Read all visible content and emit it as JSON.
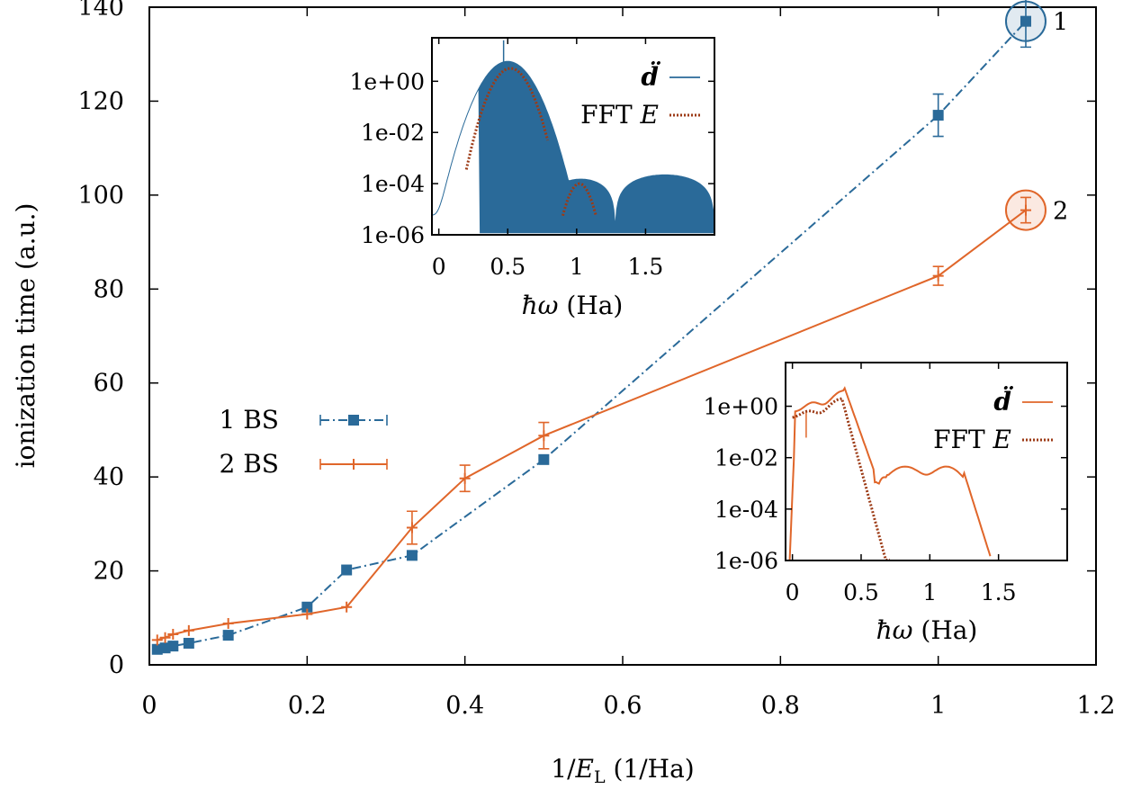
{
  "chart_data": [
    {
      "id": "main",
      "type": "line",
      "xlabel": "1/E_L (1/Ha)",
      "ylabel": "ionization time (a.u.)",
      "xlim": [
        0,
        1.2
      ],
      "ylim": [
        0,
        140
      ],
      "xticks": [
        "0",
        "0.2",
        "0.4",
        "0.6",
        "0.8",
        "1",
        "1.2"
      ],
      "yticks": [
        "0",
        "20",
        "40",
        "60",
        "80",
        "100",
        "120",
        "140"
      ],
      "legend_position": "middle-left",
      "series": [
        {
          "name": "1 BS",
          "color": "#2a6a99",
          "marker": "square",
          "line_style": "dash-dot",
          "points": [
            {
              "x": 0.01,
              "y": 3.3
            },
            {
              "x": 0.02,
              "y": 3.6
            },
            {
              "x": 0.03,
              "y": 4.0
            },
            {
              "x": 0.05,
              "y": 4.6
            },
            {
              "x": 0.1,
              "y": 6.3
            },
            {
              "x": 0.2,
              "y": 12.3
            },
            {
              "x": 0.25,
              "y": 20.2
            },
            {
              "x": 0.333,
              "y": 23.3
            },
            {
              "x": 0.5,
              "y": 43.7
            },
            {
              "x": 1.0,
              "y": 117.0,
              "err": 4.5
            },
            {
              "x": 1.111,
              "y": 137.0,
              "err": 5.5
            }
          ]
        },
        {
          "name": "2 BS",
          "color": "#e0662a",
          "marker": "plus",
          "line_style": "solid",
          "points": [
            {
              "x": 0.01,
              "y": 5.3
            },
            {
              "x": 0.02,
              "y": 5.8
            },
            {
              "x": 0.03,
              "y": 6.5
            },
            {
              "x": 0.05,
              "y": 7.3
            },
            {
              "x": 0.1,
              "y": 8.8
            },
            {
              "x": 0.2,
              "y": 10.8
            },
            {
              "x": 0.25,
              "y": 12.3
            },
            {
              "x": 0.333,
              "y": 29.2,
              "err": 3.5
            },
            {
              "x": 0.4,
              "y": 39.7,
              "err": 2.8
            },
            {
              "x": 0.5,
              "y": 48.8,
              "err": 2.8
            },
            {
              "x": 1.0,
              "y": 82.8,
              "err": 2.0
            },
            {
              "x": 1.111,
              "y": 96.8,
              "err": 2.7
            }
          ]
        }
      ],
      "annotations": [
        {
          "text": "1",
          "series": 0,
          "point": 10
        },
        {
          "text": "2",
          "series": 1,
          "point": 11
        }
      ]
    },
    {
      "id": "inset-1",
      "type": "line",
      "yscale": "log",
      "xlabel": "ħω (Ha)",
      "xlim": [
        -0.05,
        2.0
      ],
      "ylim": [
        1e-06,
        50
      ],
      "xticks": [
        "0",
        "0.5",
        "1",
        "1.5"
      ],
      "yticks": [
        "1e-06",
        "1e-04",
        "1e-02",
        "1e+00"
      ],
      "legend_position": "top-right",
      "series": [
        {
          "name": "d̈",
          "color": "#2a6a99",
          "style": "solid-filled"
        },
        {
          "name": "FFT E",
          "color": "#9c3a15",
          "style": "dotted"
        }
      ]
    },
    {
      "id": "inset-2",
      "type": "line",
      "yscale": "log",
      "xlabel": "ħω (Ha)",
      "xlim": [
        -0.05,
        2.0
      ],
      "ylim": [
        1e-06,
        50
      ],
      "xticks": [
        "0",
        "0.5",
        "1",
        "1.5"
      ],
      "yticks": [
        "1e-06",
        "1e-04",
        "1e-02",
        "1e+00"
      ],
      "legend_position": "top-right",
      "series": [
        {
          "name": "d̈",
          "color": "#e0662a",
          "style": "solid"
        },
        {
          "name": "FFT E",
          "color": "#9c3a15",
          "style": "dotted"
        }
      ]
    }
  ]
}
